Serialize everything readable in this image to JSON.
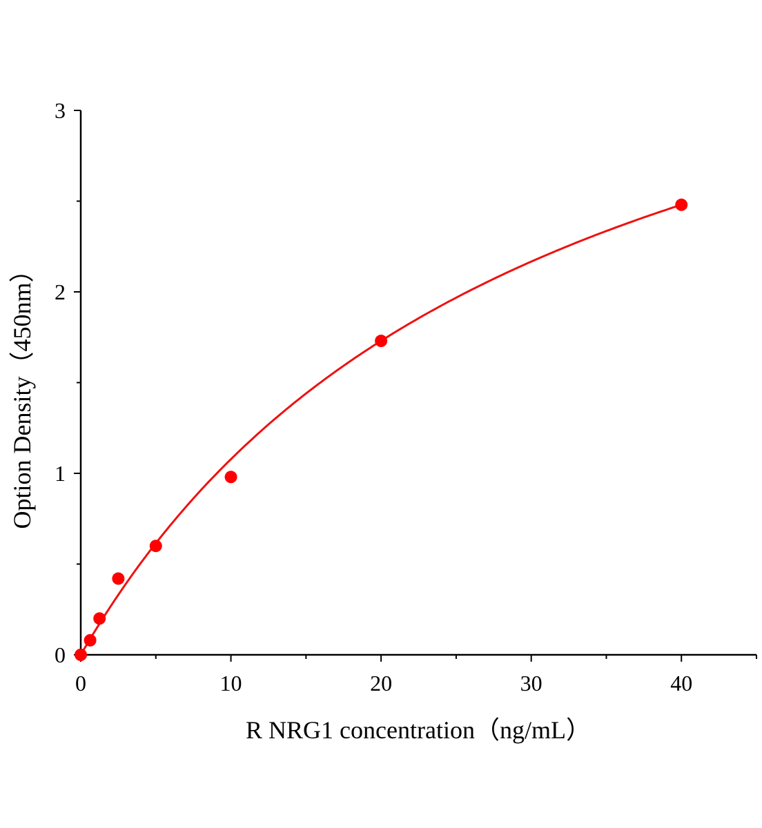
{
  "chart_data": {
    "type": "scatter",
    "title": "",
    "xlabel": "R NRG1 concentration（ng/mL）",
    "ylabel": "Option Density（450nm）",
    "xlim": [
      0,
      45
    ],
    "ylim": [
      0,
      3
    ],
    "xticks": [
      "0",
      "10",
      "20",
      "30",
      "40"
    ],
    "yticks": [
      "0",
      "1",
      "2",
      "3"
    ],
    "grid": false,
    "legend": "none",
    "colors": {
      "points": "#ff0000",
      "fit_line": "#ee1111",
      "axes": "#000000"
    },
    "series": [
      {
        "x": [
          0,
          0.625,
          1.25,
          2.5,
          5,
          10,
          20,
          40
        ],
        "y": [
          0.0,
          0.08,
          0.2,
          0.42,
          0.6,
          0.98,
          1.73,
          2.48
        ]
      }
    ],
    "fit_curve": "smooth saturating fit through points"
  }
}
